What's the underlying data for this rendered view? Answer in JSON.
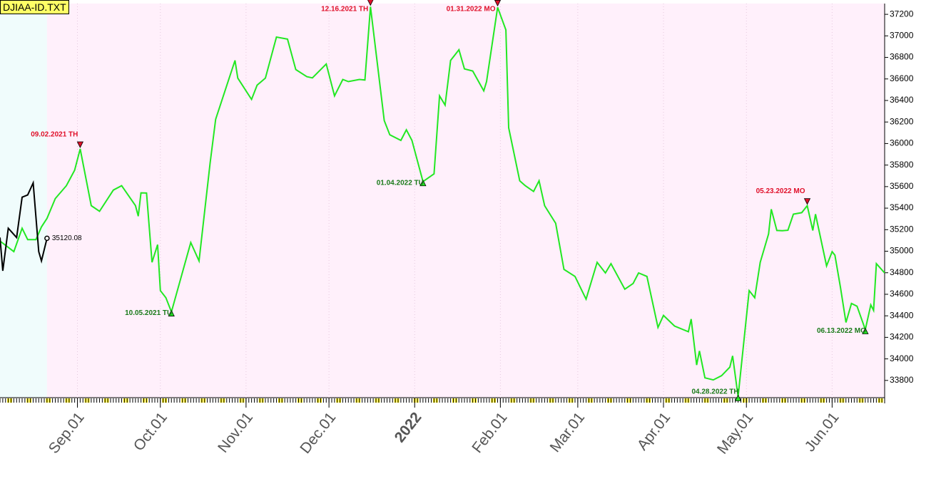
{
  "chart_data": {
    "type": "line",
    "title": "DJIAA-ID.TXT",
    "xlim": [
      "2021-08-04",
      "2022-06-20"
    ],
    "xticks": [
      {
        "value": "2021-09-01",
        "label": "Sep.01"
      },
      {
        "value": "2021-10-01",
        "label": "Oct.01"
      },
      {
        "value": "2021-11-01",
        "label": "Nov.01"
      },
      {
        "value": "2021-12-01",
        "label": "Dec.01"
      },
      {
        "value": "2022-01-01",
        "label": "2022"
      },
      {
        "value": "2022-02-01",
        "label": "Feb.01"
      },
      {
        "value": "2022-03-01",
        "label": "Mar.01"
      },
      {
        "value": "2022-04-01",
        "label": "Apr.01"
      },
      {
        "value": "2022-05-01",
        "label": "May.01"
      },
      {
        "value": "2022-06-01",
        "label": "Jun.01"
      }
    ],
    "ylim": [
      33640,
      37300
    ],
    "yticks": [
      33800,
      34000,
      34200,
      34400,
      34600,
      34800,
      35000,
      35200,
      35400,
      35600,
      35800,
      36000,
      36200,
      36400,
      36600,
      36800,
      37000,
      37200
    ],
    "series": [
      {
        "color": "#22e822",
        "x": [
          "2021-08-04",
          "2021-08-09",
          "2021-08-12",
          "2021-08-14",
          "2021-08-17",
          "2021-08-19",
          "2021-08-21",
          "2021-08-24",
          "2021-08-28",
          "2021-08-31",
          "2021-09-02",
          "2021-09-06",
          "2021-09-09",
          "2021-09-14",
          "2021-09-17",
          "2021-09-22",
          "2021-09-23",
          "2021-09-24",
          "2021-09-26",
          "2021-09-28",
          "2021-09-30",
          "2021-10-01",
          "2021-10-03",
          "2021-10-05",
          "2021-10-12",
          "2021-10-15",
          "2021-10-19",
          "2021-10-21",
          "2021-10-28",
          "2021-10-29",
          "2021-11-03",
          "2021-11-05",
          "2021-11-08",
          "2021-11-12",
          "2021-11-16",
          "2021-11-19",
          "2021-11-23",
          "2021-11-25",
          "2021-11-30",
          "2021-12-03",
          "2021-12-06",
          "2021-12-08",
          "2021-12-12",
          "2021-12-14",
          "2021-12-16",
          "2021-12-21",
          "2021-12-23",
          "2021-12-27",
          "2021-12-29",
          "2021-12-31",
          "2022-01-04",
          "2022-01-08",
          "2022-01-10",
          "2022-01-12",
          "2022-01-14",
          "2022-01-17",
          "2022-01-19",
          "2022-01-22",
          "2022-01-26",
          "2022-01-27",
          "2022-01-31",
          "2022-02-03",
          "2022-02-04",
          "2022-02-08",
          "2022-02-10",
          "2022-02-13",
          "2022-02-15",
          "2022-02-17",
          "2022-02-21",
          "2022-02-24",
          "2022-02-28",
          "2022-03-04",
          "2022-03-08",
          "2022-03-11",
          "2022-03-13",
          "2022-03-18",
          "2022-03-21",
          "2022-03-23",
          "2022-03-26",
          "2022-03-30",
          "2022-04-01",
          "2022-04-05",
          "2022-04-10",
          "2022-04-11",
          "2022-04-13",
          "2022-04-14",
          "2022-04-16",
          "2022-04-19",
          "2022-04-22",
          "2022-04-25",
          "2022-04-26",
          "2022-04-28",
          "2022-05-02",
          "2022-05-04",
          "2022-05-06",
          "2022-05-09",
          "2022-05-10",
          "2022-05-12",
          "2022-05-14",
          "2022-05-16",
          "2022-05-18",
          "2022-05-21",
          "2022-05-23",
          "2022-05-25",
          "2022-05-26",
          "2022-05-30",
          "2022-06-01",
          "2022-06-02",
          "2022-06-04",
          "2022-06-06",
          "2022-06-08",
          "2022-06-10",
          "2022-06-13",
          "2022-06-15",
          "2022-06-16",
          "2022-06-17",
          "2022-06-20"
        ],
        "values": [
          35094,
          34996,
          35213,
          35108,
          35108,
          35226,
          35305,
          35489,
          35608,
          35752,
          35950,
          35423,
          35371,
          35568,
          35608,
          35423,
          35325,
          35542,
          35540,
          34897,
          35061,
          34634,
          34568,
          34437,
          35081,
          34910,
          35818,
          36226,
          36772,
          36608,
          36410,
          36542,
          36608,
          36989,
          36970,
          36687,
          36621,
          36610,
          36739,
          36443,
          36595,
          36575,
          36595,
          36590,
          37270,
          36213,
          36081,
          36029,
          36127,
          36029,
          35647,
          35719,
          36443,
          36357,
          36772,
          36871,
          36693,
          36674,
          36489,
          36575,
          37265,
          37055,
          36147,
          35654,
          35608,
          35555,
          35654,
          35423,
          35259,
          34831,
          34766,
          34555,
          34897,
          34798,
          34884,
          34647,
          34700,
          34798,
          34766,
          34292,
          34404,
          34305,
          34252,
          34370,
          33943,
          34074,
          33824,
          33805,
          33844,
          33923,
          34028,
          33650,
          34634,
          34568,
          34897,
          35160,
          35390,
          35193,
          35190,
          35195,
          35344,
          35358,
          35423,
          35193,
          35344,
          34864,
          34996,
          34963,
          34667,
          34338,
          34515,
          34489,
          34272,
          34502,
          34450,
          34884,
          34798
        ]
      },
      {
        "color": "#000000",
        "x": [
          "2021-08-04",
          "2021-08-05",
          "2021-08-07",
          "2021-08-10",
          "2021-08-12",
          "2021-08-14",
          "2021-08-16",
          "2021-08-18",
          "2021-08-19",
          "2021-08-21"
        ],
        "values": [
          35127,
          34818,
          35213,
          35127,
          35502,
          35522,
          35634,
          34996,
          34910,
          35120.08
        ]
      }
    ],
    "annotations": [
      {
        "x": "2021-09-02",
        "text": "09.02.2021 TH",
        "color": "#e0102a",
        "marker": "down"
      },
      {
        "x": "2021-10-05",
        "text": "10.05.2021 TU",
        "color": "#1a7a1a",
        "marker": "up"
      },
      {
        "x": "2021-12-16",
        "text": "12.16.2021 TH",
        "color": "#e0102a",
        "marker": "down"
      },
      {
        "x": "2022-01-04",
        "text": "01.04.2022 TU",
        "color": "#1a7a1a",
        "marker": "up"
      },
      {
        "x": "2022-01-31",
        "text": "01.31.2022 MO",
        "color": "#e0102a",
        "marker": "down"
      },
      {
        "x": "2022-04-28",
        "text": "04.28.2022 TH",
        "color": "#1a7a1a",
        "marker": "up"
      },
      {
        "x": "2022-05-23",
        "text": "05.23.2022 MO",
        "color": "#e0102a",
        "marker": "down"
      },
      {
        "x": "2022-06-13",
        "text": "06.13.2022 MO",
        "color": "#1a7a1a",
        "marker": "up"
      }
    ]
  }
}
